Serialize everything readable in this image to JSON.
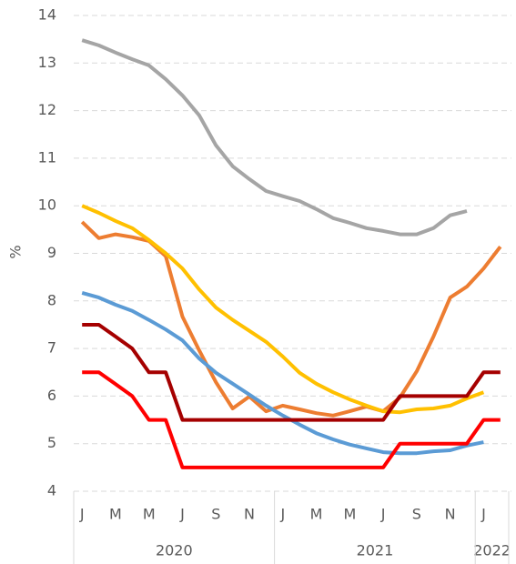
{
  "chart_data": {
    "type": "line",
    "y_label": "%",
    "categories": [
      "J",
      null,
      "M",
      null,
      "M",
      null,
      "J",
      null,
      "S",
      null,
      "N",
      null,
      "J",
      null,
      "M",
      null,
      "M",
      null,
      "J",
      null,
      "S",
      null,
      "N",
      null,
      "J",
      null
    ],
    "years": [
      "2020",
      "2021",
      "2022"
    ],
    "ylim": [
      4,
      14
    ],
    "yticks": [
      4,
      5,
      6,
      7,
      8,
      9,
      10,
      11,
      12,
      13,
      14
    ],
    "grid": true,
    "series": [
      {
        "color": "#a5a5a5",
        "values": [
          13.48,
          13.37,
          13.22,
          13.08,
          12.95,
          12.66,
          12.32,
          11.9,
          11.27,
          10.83,
          10.56,
          10.31,
          10.2,
          10.1,
          9.93,
          9.74,
          9.64,
          9.53,
          9.47,
          9.4,
          9.4,
          9.53,
          9.8,
          9.89,
          null,
          null
        ]
      },
      {
        "color": "#ed7d31",
        "values": [
          9.66,
          9.32,
          9.4,
          9.34,
          9.26,
          8.94,
          7.67,
          6.96,
          6.29,
          5.74,
          5.99,
          5.68,
          5.8,
          5.72,
          5.64,
          5.59,
          5.68,
          5.78,
          5.68,
          5.97,
          6.52,
          7.25,
          8.07,
          8.3,
          8.68,
          9.14
        ]
      },
      {
        "color": "#ffc000",
        "values": [
          10.0,
          9.85,
          9.68,
          9.53,
          9.28,
          9.0,
          8.68,
          8.24,
          7.86,
          7.6,
          7.37,
          7.14,
          6.83,
          6.49,
          6.26,
          6.08,
          5.93,
          5.8,
          5.68,
          5.66,
          5.72,
          5.74,
          5.8,
          5.95,
          6.08,
          null
        ]
      },
      {
        "color": "#5b9bd5",
        "values": [
          8.17,
          8.07,
          7.92,
          7.79,
          7.6,
          7.4,
          7.17,
          6.79,
          6.49,
          6.26,
          6.03,
          5.8,
          5.59,
          5.4,
          5.22,
          5.09,
          4.98,
          4.9,
          4.82,
          4.8,
          4.8,
          4.84,
          4.86,
          4.96,
          5.03,
          null
        ]
      },
      {
        "color": "#a50000",
        "values": [
          7.5,
          7.5,
          7.25,
          7.0,
          6.5,
          6.5,
          5.5,
          5.5,
          5.5,
          5.5,
          5.5,
          5.5,
          5.5,
          5.5,
          5.5,
          5.5,
          5.5,
          5.5,
          5.5,
          6.0,
          6.0,
          6.0,
          6.0,
          6.0,
          6.5,
          6.5
        ]
      },
      {
        "color": "#ff0000",
        "values": [
          6.5,
          6.5,
          6.25,
          6.0,
          5.5,
          5.5,
          4.5,
          4.5,
          4.5,
          4.5,
          4.5,
          4.5,
          4.5,
          4.5,
          4.5,
          4.5,
          4.5,
          4.5,
          4.5,
          5.0,
          5.0,
          5.0,
          5.0,
          5.0,
          5.5,
          5.5
        ]
      }
    ]
  }
}
